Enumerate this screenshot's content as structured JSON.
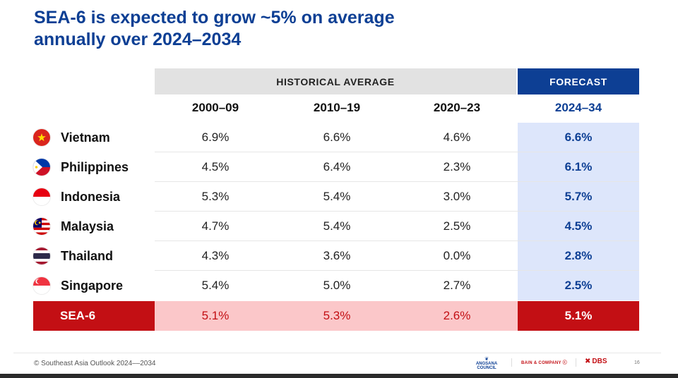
{
  "title": {
    "line1": "SEA-6 is expected to grow ~5% on average",
    "line2": "annually over 2024–2034"
  },
  "header": {
    "historical": "HISTORICAL AVERAGE",
    "forecast": "FORECAST",
    "periods": [
      "2000–09",
      "2010–19",
      "2020–23",
      "2024–34"
    ]
  },
  "rows": [
    {
      "country": "Vietnam",
      "flag": "vietnam-flag-icon",
      "values": [
        "6.9%",
        "6.6%",
        "4.6%"
      ],
      "forecast": "6.6%"
    },
    {
      "country": "Philippines",
      "flag": "philippines-flag-icon",
      "values": [
        "4.5%",
        "6.4%",
        "2.3%"
      ],
      "forecast": "6.1%"
    },
    {
      "country": "Indonesia",
      "flag": "indonesia-flag-icon",
      "values": [
        "5.3%",
        "5.4%",
        "3.0%"
      ],
      "forecast": "5.7%"
    },
    {
      "country": "Malaysia",
      "flag": "malaysia-flag-icon",
      "values": [
        "4.7%",
        "5.4%",
        "2.5%"
      ],
      "forecast": "4.5%"
    },
    {
      "country": "Thailand",
      "flag": "thailand-flag-icon",
      "values": [
        "4.3%",
        "3.6%",
        "0.0%"
      ],
      "forecast": "2.8%"
    },
    {
      "country": "Singapore",
      "flag": "singapore-flag-icon",
      "values": [
        "5.4%",
        "5.0%",
        "2.7%"
      ],
      "forecast": "2.5%"
    }
  ],
  "total": {
    "label": "SEA-6",
    "values": [
      "5.1%",
      "5.3%",
      "2.6%"
    ],
    "forecast": "5.1%"
  },
  "footer": {
    "copyright": "© Southeast Asia Outlook 2024––2034",
    "angsana_line1": "ANGSANA",
    "angsana_line2": "COUNCIL",
    "bain": "BAIN & COMPANY ⓒ",
    "dbs": "DBS",
    "page": "16"
  },
  "colors": {
    "title_blue": "#0d3f94",
    "forecast_band": "#dde6fb",
    "total_red": "#c30f14",
    "total_pink": "#fbc7c9"
  }
}
